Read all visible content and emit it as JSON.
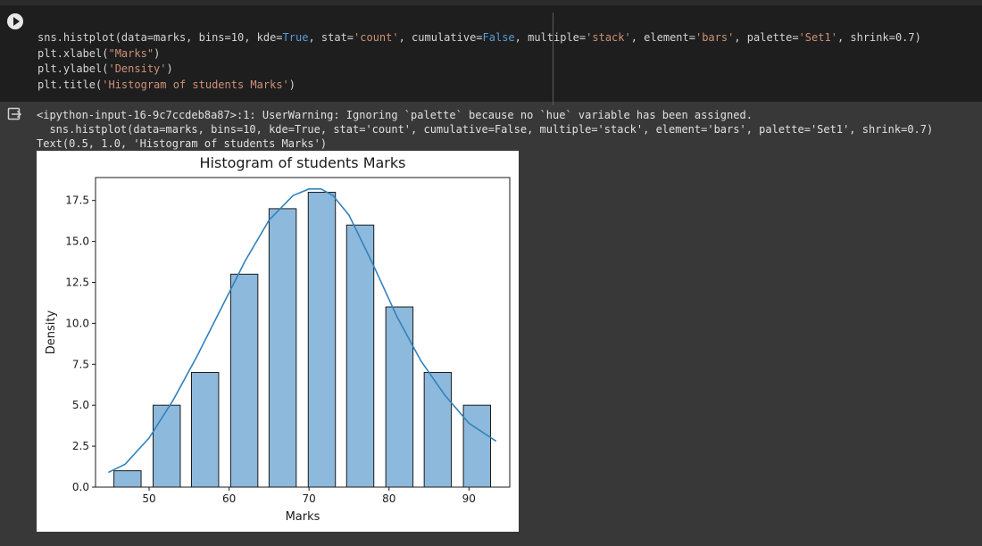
{
  "cell": {
    "code_lines": [
      [
        {
          "t": "sns.histplot(data=marks, bins=10, kde=",
          "c": ""
        },
        {
          "t": "True",
          "c": "k"
        },
        {
          "t": ", stat=",
          "c": ""
        },
        {
          "t": "'count'",
          "c": "s"
        },
        {
          "t": ", cumulative=",
          "c": ""
        },
        {
          "t": "False",
          "c": "k"
        },
        {
          "t": ", multiple=",
          "c": ""
        },
        {
          "t": "'stack'",
          "c": "s"
        },
        {
          "t": ", element=",
          "c": ""
        },
        {
          "t": "'bars'",
          "c": "s"
        },
        {
          "t": ", palette=",
          "c": ""
        },
        {
          "t": "'Set1'",
          "c": "s"
        },
        {
          "t": ", shrink=0.7)",
          "c": ""
        }
      ],
      [
        {
          "t": "plt.xlabel(",
          "c": ""
        },
        {
          "t": "\"Marks\"",
          "c": "s"
        },
        {
          "t": ")",
          "c": ""
        }
      ],
      [
        {
          "t": "plt.ylabel(",
          "c": ""
        },
        {
          "t": "'Density'",
          "c": "s"
        },
        {
          "t": ")",
          "c": ""
        }
      ],
      [
        {
          "t": "plt.title(",
          "c": ""
        },
        {
          "t": "'Histogram of students Marks'",
          "c": "s"
        },
        {
          "t": ")",
          "c": ""
        }
      ]
    ]
  },
  "output": {
    "lines": [
      "<ipython-input-16-9c7ccdeb8a87>:1: UserWarning: Ignoring `palette` because no `hue` variable has been assigned.",
      "  sns.histplot(data=marks, bins=10, kde=True, stat='count', cumulative=False, multiple='stack', element='bars', palette='Set1', shrink=0.7)",
      "Text(0.5, 1.0, 'Histogram of students Marks')"
    ]
  },
  "chart_data": {
    "type": "bar",
    "title": "Histogram of students Marks",
    "xlabel": "Marks",
    "ylabel": "Density",
    "bin_centers": [
      47.3,
      52.2,
      57.0,
      61.9,
      66.7,
      71.6,
      76.4,
      81.3,
      86.1,
      91.0
    ],
    "values": [
      1,
      5,
      7,
      13,
      17,
      18,
      16,
      11,
      7,
      5
    ],
    "kde": {
      "x": [
        44.9,
        47,
        50,
        53,
        56,
        59,
        62,
        65,
        68,
        70,
        71.5,
        73,
        75,
        78,
        81,
        84,
        87,
        90,
        93.4
      ],
      "y": [
        0.9,
        1.4,
        3.0,
        5.3,
        8.0,
        10.9,
        13.8,
        16.3,
        17.8,
        18.2,
        18.2,
        17.8,
        16.6,
        13.6,
        10.4,
        7.7,
        5.6,
        3.9,
        2.8
      ]
    },
    "xlim": [
      43.3,
      95.1
    ],
    "ylim": [
      0,
      18.9
    ],
    "xticks": [
      50,
      60,
      70,
      80,
      90
    ],
    "yticks": [
      0.0,
      2.5,
      5.0,
      7.5,
      10.0,
      12.5,
      15.0,
      17.5
    ],
    "ytick_labels": [
      "0.0",
      "2.5",
      "5.0",
      "7.5",
      "10.0",
      "12.5",
      "15.0",
      "17.5"
    ],
    "bar_color": "#8db9dc",
    "edge_color": "#1a1a1a",
    "kde_color": "#3182bd",
    "grid": false
  }
}
